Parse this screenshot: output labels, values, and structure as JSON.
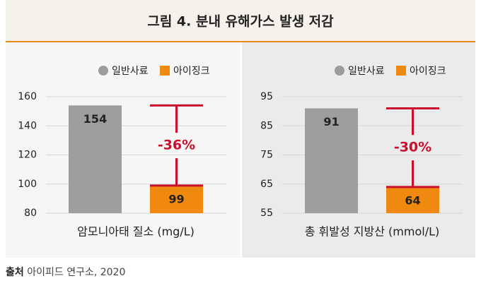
{
  "title": "그림 4. 분내 유해가스 발생 저감",
  "source": {
    "label": "출처",
    "text": "아이피드 연구소, 2020"
  },
  "chart_data": [
    {
      "type": "bar",
      "xlabel": "암모니아태 질소 (mg/L)",
      "annotation": "-36%",
      "series": [
        {
          "name": "일반사료",
          "color": "#9d9d9d",
          "values": [
            154
          ]
        },
        {
          "name": "아이징크",
          "color": "#f0890f",
          "values": [
            99
          ]
        }
      ],
      "ylim": [
        80,
        160
      ],
      "yticks": [
        80,
        100,
        120,
        140,
        160
      ],
      "grid": true
    },
    {
      "type": "bar",
      "xlabel": "총 휘발성 지방산 (mmol/L)",
      "annotation": "-30%",
      "series": [
        {
          "name": "일반사료",
          "color": "#9d9d9d",
          "values": [
            91
          ]
        },
        {
          "name": "아이징크",
          "color": "#f0890f",
          "values": [
            64
          ]
        }
      ],
      "ylim": [
        55,
        95
      ],
      "yticks": [
        55,
        65,
        75,
        85,
        95
      ],
      "grid": true
    }
  ]
}
